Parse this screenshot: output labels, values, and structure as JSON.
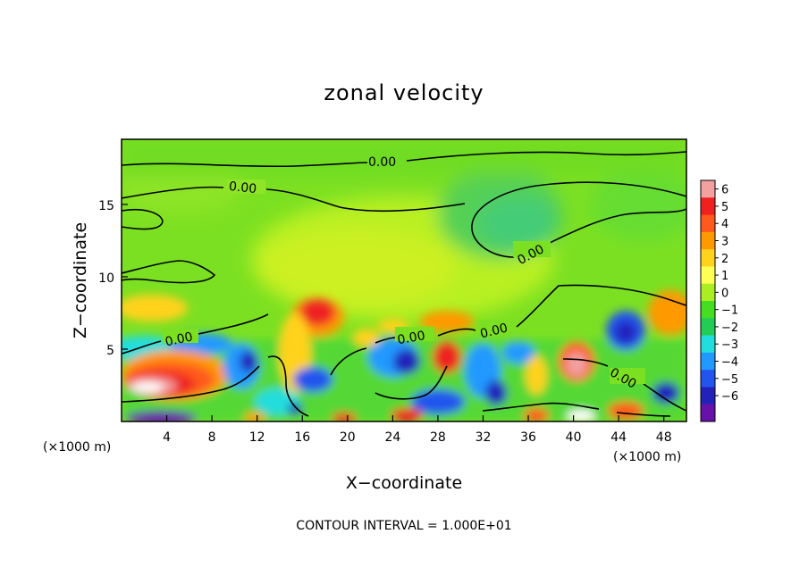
{
  "chart_data": {
    "type": "heatmap",
    "title": "zonal velocity",
    "xlabel": "X−coordinate",
    "ylabel": "Z−coordinate",
    "x_unit_left": "(×1000 m)",
    "x_unit_right": "(×1000 m)",
    "xlim": [
      0,
      50
    ],
    "ylim": [
      0,
      19.5
    ],
    "x_ticks": [
      4,
      8,
      12,
      16,
      20,
      24,
      28,
      32,
      36,
      40,
      44,
      48
    ],
    "y_ticks": [
      5,
      10,
      15
    ],
    "contour_label": "0.00",
    "contour_interval_text": "CONTOUR INTERVAL = 1.000E+01",
    "colorbar": {
      "ticks": [
        "6",
        "5",
        "4",
        "3",
        "2",
        "1",
        "0",
        "−1",
        "−2",
        "−3",
        "−4",
        "−5",
        "−6"
      ],
      "colors": [
        "#f2a0a0",
        "#ee2020",
        "#ff5a1e",
        "#ff9900",
        "#ffd21e",
        "#ffff55",
        "#aaee22",
        "#44dd22",
        "#22cc55",
        "#22dddd",
        "#2299ff",
        "#2255ee",
        "#2222bb",
        "#6611aa"
      ],
      "range": [
        -6,
        6
      ]
    },
    "grid": false
  }
}
